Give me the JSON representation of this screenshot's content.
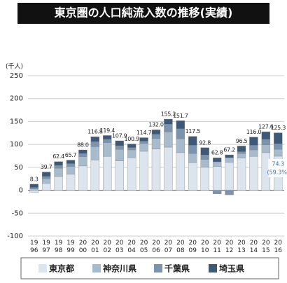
{
  "chart_data": {
    "type": "stacked_bar",
    "title": "東京圏の人口純流入数の推移(実績)",
    "y_label": "(千人)",
    "categories": [
      "1996",
      "1997",
      "1998",
      "1999",
      "2000",
      "2001",
      "2002",
      "2003",
      "2004",
      "2005",
      "2006",
      "2007",
      "2008",
      "2009",
      "2010",
      "2011",
      "2012",
      "2013",
      "2014",
      "2015",
      "2016"
    ],
    "series": [
      {
        "name": "東京都",
        "color": "#dce5ee",
        "values": [
          -5,
          15,
          30,
          35,
          53,
          66,
          74,
          64,
          71,
          85,
          90,
          94,
          82,
          60,
          50,
          52,
          61,
          70,
          74,
          82,
          74.3
        ]
      },
      {
        "name": "神奈川県",
        "color": "#a8bbcd",
        "values": [
          3,
          10,
          18,
          17,
          20,
          29,
          30,
          25,
          17,
          17,
          23,
          33,
          30,
          20,
          17,
          10,
          10,
          10,
          14,
          17,
          15
        ]
      },
      {
        "name": "千葉県",
        "color": "#7b93ac",
        "values": [
          3,
          5,
          6,
          6,
          7,
          11,
          7,
          8,
          5,
          5,
          9,
          17,
          22,
          18,
          10,
          -8,
          -10,
          4,
          10,
          12,
          12
        ]
      },
      {
        "name": "埼玉県",
        "color": "#3d5977",
        "values": [
          7.3,
          9.7,
          8.4,
          7.7,
          8,
          10.8,
          8.4,
          10.9,
          7.9,
          7.7,
          10,
          11.2,
          17.7,
          19.5,
          15.8,
          8.8,
          6.2,
          12.5,
          18,
          16.6,
          24
        ]
      }
    ],
    "totals": [
      8.3,
      39.7,
      62.4,
      65.7,
      88.0,
      116.8,
      119.4,
      107.9,
      100.9,
      114.7,
      132.0,
      155.2,
      151.7,
      117.5,
      92.8,
      62.8,
      67.2,
      96.5,
      116.0,
      127.6,
      125.3
    ],
    "total_labels": [
      "8.3",
      "39.7",
      "62.4",
      "65.7",
      "88.0",
      "116.8",
      "119.4",
      "107.9",
      "100.9",
      "114.7",
      "132.0",
      "155.2",
      "151.7",
      "117.5",
      "92.8",
      "62.8",
      "67.2",
      "96.5",
      "116.0",
      "127.6",
      "125.3"
    ],
    "annotation": [
      "74.3",
      "(59.3%)"
    ],
    "ylim": [
      -100,
      250
    ],
    "yticks": [
      -100,
      -50,
      0,
      50,
      100,
      150,
      200,
      250
    ],
    "grid": true
  }
}
